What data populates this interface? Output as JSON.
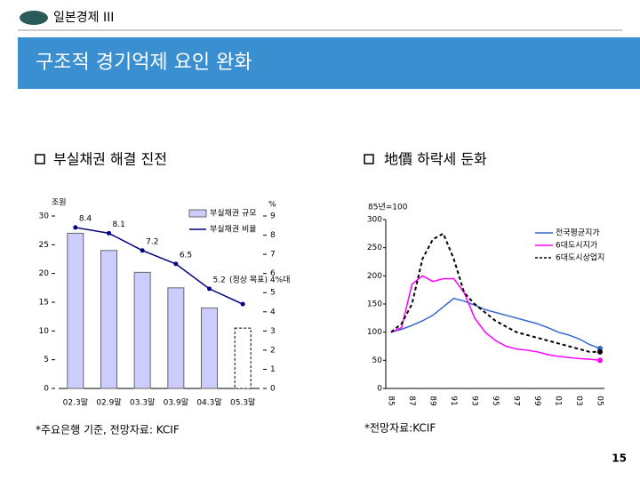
{
  "header": {
    "section": "일본경제 III",
    "title": "구조적 경기억제 요인 완화",
    "page": "15"
  },
  "chart_data": [
    {
      "type": "bar",
      "title": "부실채권 해결 진전",
      "categories": [
        "02.3말",
        "02.9말",
        "03.3말",
        "03.9말",
        "04.3말",
        "05.3말"
      ],
      "series": [
        {
          "name": "부실채권 규모",
          "color": "#ccccff",
          "values": [
            27,
            24,
            20.2,
            17.5,
            14,
            10.5
          ]
        },
        {
          "name": "부실채권 비율",
          "color": "#000080",
          "axis": "y2",
          "values": [
            8.4,
            8.1,
            7.2,
            6.5,
            5.2,
            4.4
          ],
          "value_labels": [
            "8.4",
            "8.1",
            "7.2",
            "6.5",
            "5.2",
            null
          ]
        }
      ],
      "ylabel": "조원",
      "y2label": "%",
      "ylim": [
        0,
        30
      ],
      "yticks": [
        0,
        5,
        10,
        15,
        20,
        25,
        30
      ],
      "y2lim": [
        0,
        9
      ],
      "y2ticks": [
        0,
        1,
        2,
        3,
        4,
        5,
        6,
        7,
        8,
        9
      ],
      "annotation": "(정상 목표) 4%대",
      "note": "*주요은행 기준, 전망자료: KCIF"
    },
    {
      "type": "line",
      "title": "地價 하락세 둔화",
      "categories": [
        "85",
        null,
        "87",
        null,
        "89",
        null,
        "91",
        null,
        "93",
        null,
        "95",
        null,
        "97",
        null,
        "99",
        null,
        "01",
        null,
        "03",
        null,
        "05"
      ],
      "series": [
        {
          "name": "전국평균지가",
          "color": "#3366cc",
          "values": [
            100,
            105,
            112,
            120,
            130,
            145,
            160,
            155,
            148,
            140,
            135,
            130,
            125,
            120,
            115,
            108,
            100,
            95,
            88,
            78,
            71
          ]
        },
        {
          "name": "6대도시지가",
          "color": "#ff00ff",
          "values": [
            100,
            108,
            185,
            200,
            190,
            195,
            195,
            170,
            125,
            100,
            85,
            75,
            70,
            68,
            65,
            60,
            57,
            55,
            53,
            52,
            50
          ]
        },
        {
          "name": "6대도시상업지",
          "color": "#000000",
          "dashed": true,
          "values": [
            100,
            115,
            150,
            230,
            265,
            275,
            230,
            170,
            150,
            135,
            120,
            110,
            100,
            95,
            90,
            85,
            80,
            75,
            70,
            65,
            65
          ]
        }
      ],
      "ylabel": "85년=100",
      "ylim": [
        0,
        300
      ],
      "yticks": [
        0,
        50,
        100,
        150,
        200,
        250,
        300
      ],
      "note": "*전망자료:KCIF"
    }
  ]
}
